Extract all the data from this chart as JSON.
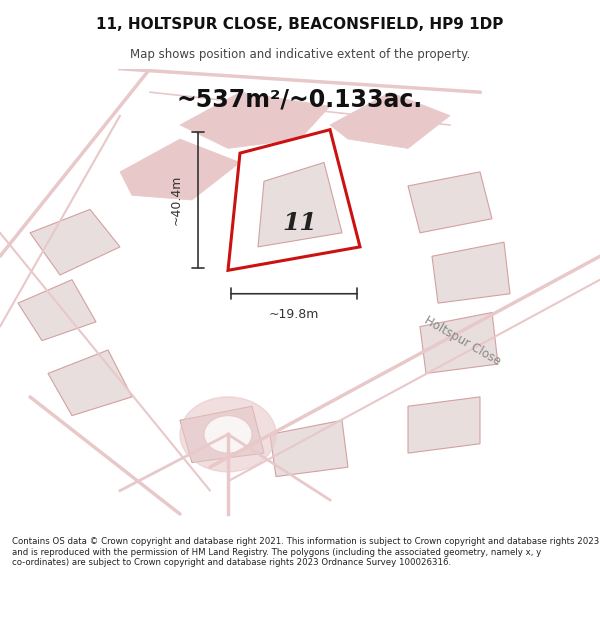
{
  "title": "11, HOLTSPUR CLOSE, BEACONSFIELD, HP9 1DP",
  "subtitle": "Map shows position and indicative extent of the property.",
  "area_text": "~537m²/~0.133ac.",
  "label_number": "11",
  "dim_width": "~19.8m",
  "dim_height": "~40.4m",
  "footer": "Contains OS data © Crown copyright and database right 2021. This information is subject to Crown copyright and database rights 2023 and is reproduced with the permission of HM Land Registry. The polygons (including the associated geometry, namely x, y co-ordinates) are subject to Crown copyright and database rights 2023 Ordnance Survey 100026316.",
  "bg_color": "#f5f0f0",
  "map_bg": "#f9f5f5",
  "road_color": "#e8c8c8",
  "highlight_color": "#cc1111",
  "building_fill": "#e8dede",
  "building_stroke": "#d4a0a0",
  "street_label": "Holtspur Close",
  "dim_color": "#333333",
  "title_color": "#111111"
}
